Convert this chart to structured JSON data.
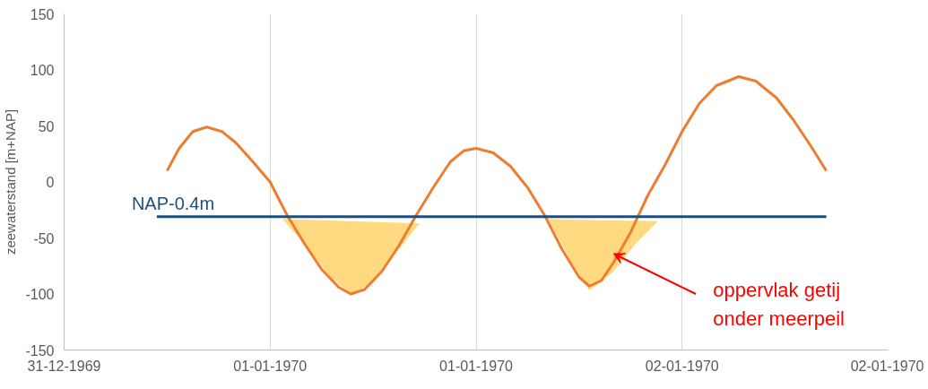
{
  "chart_data": {
    "type": "line",
    "ylabel": "zeewaterstand [m+NAP]",
    "xlim": [
      "1969-12-31T12:00",
      "1970-01-02T12:00"
    ],
    "xticks": [
      {
        "value": "1969-12-31T12:00",
        "label": "31-12-1969"
      },
      {
        "value": "1970-01-01T00:00",
        "label": "01-01-1970"
      },
      {
        "value": "1970-01-01T12:00",
        "label": "01-01-1970"
      },
      {
        "value": "1970-01-02T00:00",
        "label": "02-01-1970"
      },
      {
        "value": "1970-01-02T12:00",
        "label": "02-01-1970"
      }
    ],
    "ylim": [
      -150,
      150
    ],
    "yticks": [
      -150,
      -100,
      -50,
      0,
      50,
      100,
      150
    ],
    "grid": "x",
    "legend": false,
    "series": [
      {
        "type": "area",
        "color": "#ffd36b",
        "x": [
          "1970-01-01T00:42",
          "1970-01-01T02:00",
          "1970-01-01T03:30",
          "1970-01-01T04:42",
          "1970-01-01T06:00",
          "1970-01-01T07:30",
          "1970-01-01T08:42",
          "1970-01-01T04:42"
        ],
        "values": [
          -33,
          -55,
          -85,
          -100,
          -90,
          -60,
          -37,
          -35
        ]
      },
      {
        "type": "area",
        "color": "#ffd36b",
        "x": [
          "1970-01-01T16:12",
          "1970-01-01T17:30",
          "1970-01-01T18:36",
          "1970-01-01T20:00",
          "1970-01-01T21:18",
          "1970-01-01T22:36",
          "1970-01-01T18:36"
        ],
        "values": [
          -33,
          -70,
          -97,
          -80,
          -55,
          -35,
          -34
        ]
      },
      {
        "color": "#ed7d31",
        "x": [
          "1969-12-31T18:00",
          "1969-12-31T18:42",
          "1969-12-31T19:30",
          "1969-12-31T20:18",
          "1969-12-31T21:12",
          "1969-12-31T22:00",
          "1969-12-31T23:00",
          "1970-01-01T00:00",
          "1970-01-01T00:30",
          "1970-01-01T01:00",
          "1970-01-01T02:00",
          "1970-01-01T03:00",
          "1970-01-01T04:00",
          "1970-01-01T04:42",
          "1970-01-01T05:30",
          "1970-01-01T06:30",
          "1970-01-01T07:30",
          "1970-01-01T08:30",
          "1970-01-01T09:30",
          "1970-01-01T10:30",
          "1970-01-01T11:18",
          "1970-01-01T12:00",
          "1970-01-01T13:00",
          "1970-01-01T14:00",
          "1970-01-01T15:00",
          "1970-01-01T16:00",
          "1970-01-01T17:00",
          "1970-01-01T18:00",
          "1970-01-01T18:36",
          "1970-01-01T19:18",
          "1970-01-01T20:00",
          "1970-01-01T21:00",
          "1970-01-01T22:00",
          "1970-01-01T23:00",
          "1970-01-02T00:00",
          "1970-01-02T01:00",
          "1970-01-02T02:00",
          "1970-01-02T03:18",
          "1970-01-02T04:18",
          "1970-01-02T05:30",
          "1970-01-02T06:30",
          "1970-01-02T07:30",
          "1970-01-02T08:24"
        ],
        "values": [
          10,
          30,
          45,
          49,
          45,
          35,
          18,
          0,
          -15,
          -30,
          -55,
          -78,
          -94,
          -100,
          -96,
          -80,
          -57,
          -30,
          -5,
          18,
          28,
          30,
          26,
          14,
          -5,
          -30,
          -60,
          -85,
          -93,
          -88,
          -72,
          -45,
          -12,
          15,
          45,
          70,
          86,
          94,
          90,
          75,
          55,
          32,
          10
        ]
      },
      {
        "name": "NAP-0.4m",
        "color": "#1f4e79",
        "x": [
          "1969-12-31T17:24",
          "1970-01-02T08:24"
        ],
        "values": [
          -31,
          -31
        ]
      }
    ],
    "annotations": [
      {
        "text": "oppervlak getij\nonder meerpeil",
        "x": "1970-01-01T20:00",
        "y": -64
      }
    ]
  }
}
